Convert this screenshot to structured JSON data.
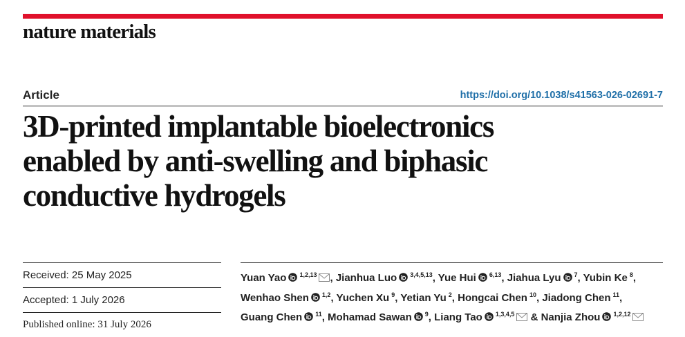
{
  "journal": "nature materials",
  "article_type": "Article",
  "doi": "https://doi.org/10.1038/s41563-026-02691-7",
  "title_lines": [
    "3D-printed implantable bioelectronics",
    "enabled by anti-swelling and biphasic",
    "conductive hydrogels"
  ],
  "dates": [
    {
      "label": "Received:",
      "date": "25 May 2025"
    },
    {
      "label": "Accepted:",
      "date": "1 July 2026"
    },
    {
      "label": "Published online:",
      "date": "31 July 2026"
    }
  ],
  "author_lines": [
    [
      {
        "name": "Yuan Yao",
        "affiliations": "1,2,13",
        "orcid": true,
        "email": true,
        "after": ","
      },
      {
        "name": "Jianhua Luo",
        "affiliations": "3,4,5,13",
        "orcid": true,
        "email": false,
        "after": ","
      },
      {
        "name": "Yue Hui",
        "affiliations": "6,13",
        "orcid": true,
        "email": false,
        "after": ","
      },
      {
        "name": "Jiahua Lyu",
        "affiliations": "7",
        "orcid": true,
        "email": false,
        "after": ","
      },
      {
        "name": "Yubin Ke",
        "affiliations": "8",
        "orcid": false,
        "email": false,
        "after": ","
      }
    ],
    [
      {
        "name": "Wenhao Shen",
        "affiliations": "1,2",
        "orcid": true,
        "email": false,
        "after": ","
      },
      {
        "name": "Yuchen Xu",
        "affiliations": "9",
        "orcid": false,
        "email": false,
        "after": ","
      },
      {
        "name": "Yetian Yu",
        "affiliations": "2",
        "orcid": false,
        "email": false,
        "after": ","
      },
      {
        "name": "Hongcai Chen",
        "affiliations": "10",
        "orcid": false,
        "email": false,
        "after": ","
      },
      {
        "name": "Jiadong Chen",
        "affiliations": "11",
        "orcid": false,
        "email": false,
        "after": ","
      }
    ],
    [
      {
        "name": "Guang Chen",
        "affiliations": "11",
        "orcid": true,
        "email": false,
        "after": ","
      },
      {
        "name": "Mohamad Sawan",
        "affiliations": "9",
        "orcid": true,
        "email": false,
        "after": ","
      },
      {
        "name": "Liang Tao",
        "affiliations": "1,3,4,5",
        "orcid": true,
        "email": true,
        "after": "&"
      },
      {
        "name": "Nanjia Zhou",
        "affiliations": "1,2,12",
        "orcid": true,
        "email": true,
        "after": null
      }
    ]
  ]
}
